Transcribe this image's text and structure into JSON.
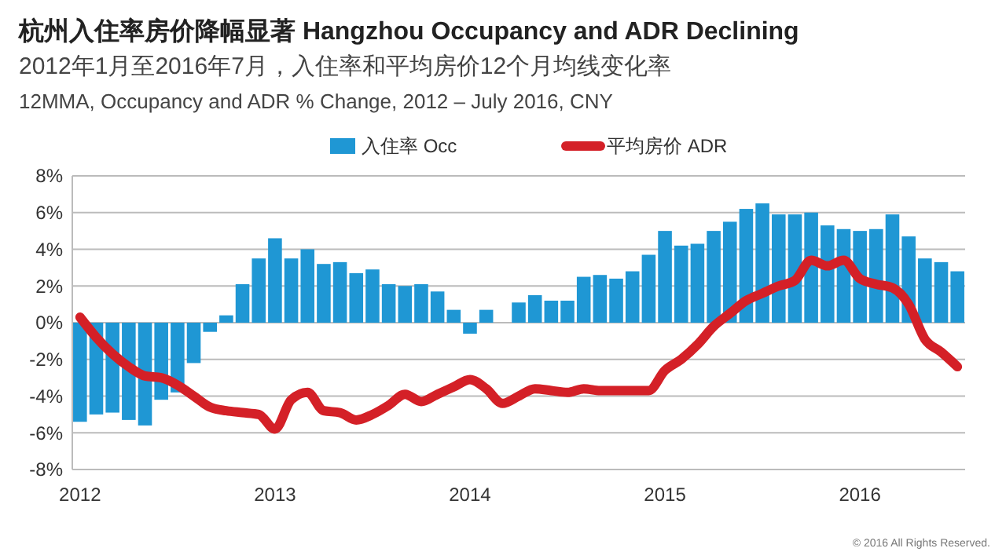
{
  "chart_data": {
    "type": "bar",
    "title": "杭州入住率房价降幅显著  Hangzhou Occupancy and ADR Declining",
    "subtitle": "2012年1月至2016年7月，入住率和平均房价12个月均线变化率\n12MMA, Occupancy and ADR % Change, 2012 – July 2016, CNY",
    "categories": [
      "2012",
      null,
      null,
      null,
      null,
      null,
      null,
      null,
      null,
      null,
      null,
      null,
      "2013",
      null,
      null,
      null,
      null,
      null,
      null,
      null,
      null,
      null,
      null,
      null,
      "2014",
      null,
      null,
      null,
      null,
      null,
      null,
      null,
      null,
      null,
      null,
      null,
      "2015",
      null,
      null,
      null,
      null,
      null,
      null,
      null,
      null,
      null,
      null,
      null,
      "2016",
      null,
      null,
      null,
      null,
      null,
      null
    ],
    "series": [
      {
        "name": "入住率 Occ",
        "color": "#1f97d4",
        "values": [
          -5.4,
          -5.0,
          -4.9,
          -5.3,
          -5.6,
          -4.2,
          -3.8,
          -2.2,
          -0.5,
          0.4,
          2.1,
          3.5,
          4.6,
          3.5,
          4.0,
          3.2,
          3.3,
          2.7,
          2.9,
          2.1,
          2.0,
          2.1,
          1.7,
          0.7,
          -0.6,
          0.7,
          0.0,
          1.1,
          1.5,
          1.2,
          1.2,
          2.5,
          2.6,
          2.4,
          2.8,
          3.7,
          5.0,
          4.2,
          4.3,
          5.0,
          5.5,
          6.2,
          6.5,
          5.9,
          5.9,
          6.0,
          5.3,
          5.1,
          5.0,
          5.1,
          5.9,
          4.7,
          3.5,
          3.3,
          2.8
        ]
      },
      {
        "name": "平均房价 ADR",
        "type": "line",
        "color": "#d42027",
        "values": [
          0.3,
          -0.8,
          -1.7,
          -2.4,
          -2.9,
          -3.0,
          -3.4,
          -4.0,
          -4.6,
          -4.8,
          -4.9,
          -5.0,
          -5.8,
          -4.2,
          -3.8,
          -4.8,
          -4.9,
          -5.3,
          -5.0,
          -4.5,
          -3.9,
          -4.3,
          -3.9,
          -3.5,
          -3.1,
          -3.6,
          -4.4,
          -4.0,
          -3.6,
          -3.7,
          -3.8,
          -3.6,
          -3.7,
          -3.7,
          -3.7,
          -3.7,
          -2.6,
          -2.0,
          -1.2,
          -0.2,
          0.5,
          1.2,
          1.6,
          2.0,
          2.3,
          3.4,
          3.1,
          3.4,
          2.4,
          2.1,
          1.9,
          1.0,
          -0.9,
          -1.6,
          -2.4
        ]
      }
    ],
    "ylim": [
      -8,
      8
    ],
    "yticks": [
      {
        "value": -8,
        "label": "-8%"
      },
      {
        "value": -6,
        "label": "-6%"
      },
      {
        "value": -4,
        "label": "-4%"
      },
      {
        "value": -2,
        "label": "-2%"
      },
      {
        "value": 0,
        "label": "0%"
      },
      {
        "value": 2,
        "label": "2%"
      },
      {
        "value": 4,
        "label": "4%"
      },
      {
        "value": 6,
        "label": "6%"
      },
      {
        "value": 8,
        "label": "8%"
      }
    ],
    "grid": "y",
    "legend": "top",
    "annotations": [
      "© 2016 All Rights Reserved."
    ]
  }
}
